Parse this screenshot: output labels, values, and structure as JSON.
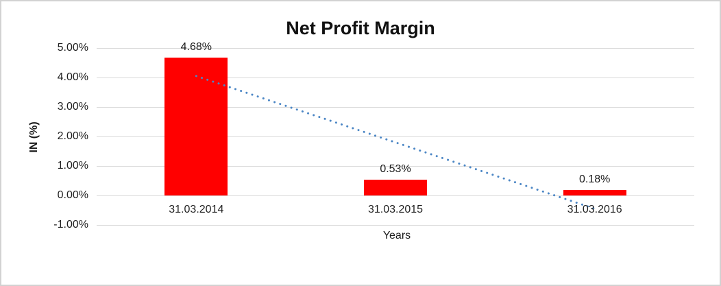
{
  "frame": {
    "background": "#ffffff",
    "border_color": "#d2d2d2"
  },
  "chart_data": {
    "type": "bar",
    "title": "Net Profit Margin",
    "categories": [
      "31.03.2014",
      "31.03.2015",
      "31.03.2016"
    ],
    "values": [
      4.68,
      0.53,
      0.18
    ],
    "data_labels": [
      "4.68%",
      "0.53%",
      "0.18%"
    ],
    "xlabel": "Years",
    "ylabel": "IN (%)",
    "ylim": [
      -1,
      5
    ],
    "ytick_values": [
      5,
      4,
      3,
      2,
      1,
      0,
      -1
    ],
    "ytick_labels": [
      "5.00%",
      "4.00%",
      "3.00%",
      "2.00%",
      "1.00%",
      "0.00%",
      "-1.00%"
    ],
    "grid": true,
    "legend": "none",
    "bar_color": "#ff0000",
    "gridline_color": "#d9d9d9",
    "text_color": "#1f1f1f",
    "trendline": {
      "type": "linear",
      "style": "dotted",
      "color": "#4b86c5",
      "start_value": 4.05,
      "end_value": -0.45
    }
  }
}
